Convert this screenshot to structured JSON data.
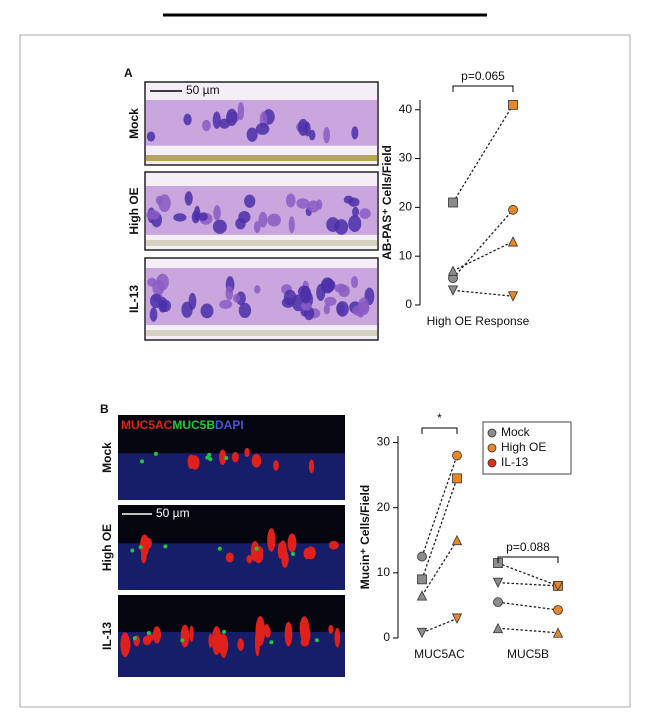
{
  "panel_a": {
    "label": "A",
    "scale_bar": "50 µm",
    "image_labels": [
      "Mock",
      "High OE",
      "IL-13"
    ]
  },
  "panel_b": {
    "label": "B",
    "stain": [
      "MUC5AC",
      "MUC5B",
      "DAPI"
    ],
    "scale_bar": "50 µm",
    "image_labels": [
      "Mock",
      "High OE",
      "IL-13"
    ]
  },
  "chart_data": [
    {
      "type": "paired-dot",
      "ylabel": "AB-PAS⁺ Cells/Field",
      "xlabel": "High OE Response",
      "ylim": [
        0,
        42
      ],
      "yticks": [
        0,
        10,
        20,
        30,
        40
      ],
      "annotation": "p=0.065",
      "colors": [
        "#8c8c8c",
        "#e8872a"
      ],
      "series": [
        {
          "marker": "square",
          "values": [
            21,
            41
          ]
        },
        {
          "marker": "circle",
          "values": [
            5.5,
            19.5
          ]
        },
        {
          "marker": "triangle-up",
          "values": [
            7,
            13
          ]
        },
        {
          "marker": "triangle-down",
          "values": [
            3,
            1.8
          ]
        }
      ]
    },
    {
      "type": "paired-dot",
      "ylabel": "Mucin⁺ Cells/Field",
      "categories": [
        "MUC5AC",
        "MUC5B"
      ],
      "ylim": [
        0,
        31
      ],
      "yticks": [
        0,
        10,
        20,
        30
      ],
      "annotations": [
        "*",
        "p=0.088"
      ],
      "colors": [
        "#8c8c8c",
        "#e8872a"
      ],
      "legend": [
        {
          "name": "Mock",
          "color": "#8c8c8c"
        },
        {
          "name": "High OE",
          "color": "#e8872a"
        },
        {
          "name": "IL-13",
          "color": "#d9331c"
        }
      ],
      "series": [
        {
          "category": 0,
          "marker": "circle",
          "values": [
            12.5,
            28
          ]
        },
        {
          "category": 0,
          "marker": "square",
          "values": [
            9,
            24.5
          ]
        },
        {
          "category": 0,
          "marker": "triangle-up",
          "values": [
            6.5,
            15
          ]
        },
        {
          "category": 0,
          "marker": "triangle-down",
          "values": [
            0.8,
            3
          ]
        },
        {
          "category": 1,
          "marker": "square",
          "values": [
            11.5,
            8
          ]
        },
        {
          "category": 1,
          "marker": "triangle-down",
          "values": [
            8.5,
            8
          ]
        },
        {
          "category": 1,
          "marker": "circle",
          "values": [
            5.5,
            4.3
          ]
        },
        {
          "category": 1,
          "marker": "triangle-up",
          "values": [
            1.5,
            0.8
          ]
        }
      ]
    }
  ]
}
